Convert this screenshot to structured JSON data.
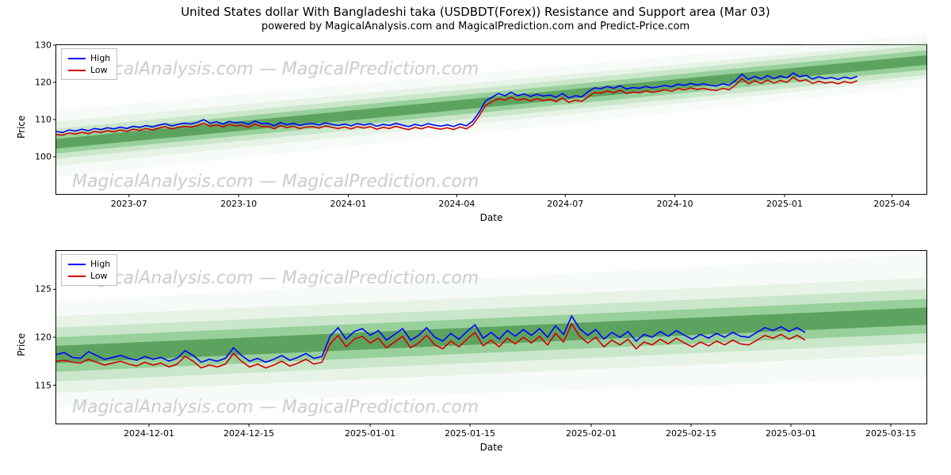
{
  "title": "United States dollar With Bangladeshi taka (USDBDT(Forex)) Resistance and Support area (Mar 03)",
  "subtitle": "powered by MagicalAnalysis.com and MagicalPrediction.com and Predict-Price.com",
  "watermark_text": "MagicalAnalysis.com — MagicalPrediction.com",
  "legend": {
    "high_label": "High",
    "low_label": "Low"
  },
  "colors": {
    "high_line": "#0000ff",
    "low_line": "#d40000",
    "bands": [
      {
        "fill": "#2e7d32",
        "opacity": 0.55
      },
      {
        "fill": "#4caf50",
        "opacity": 0.4
      },
      {
        "fill": "#81c784",
        "opacity": 0.28
      },
      {
        "fill": "#a5d6a7",
        "opacity": 0.2
      },
      {
        "fill": "#c8e6c9",
        "opacity": 0.15
      }
    ],
    "axis": "#000000",
    "background": "#ffffff",
    "watermark": "#cccccc"
  },
  "global": {
    "line_width": 1.6,
    "font_family": "DejaVu Sans, Arial, sans-serif",
    "title_fontsize": 15,
    "subtitle_fontsize": 13,
    "label_fontsize": 12,
    "tick_fontsize": 11
  },
  "panel1": {
    "type": "line-with-bands",
    "xlabel": "Date",
    "ylabel": "Price",
    "ylim": [
      90,
      130
    ],
    "yticks": [
      100,
      110,
      120,
      130
    ],
    "xlim": [
      "2023-05-01",
      "2025-04-30"
    ],
    "xticks": [
      "2023-07",
      "2023-10",
      "2024-01",
      "2024-04",
      "2024-07",
      "2024-10",
      "2025-01",
      "2025-04"
    ],
    "data_x_end": "2025-03-03",
    "band_center": {
      "start_y": 103.5,
      "end_y": 126.0
    },
    "band_halfwidths_at_start": [
      1.3,
      2.6,
      4.0,
      6.0,
      9.0
    ],
    "band_halfwidths_at_end": [
      1.3,
      2.6,
      4.0,
      5.0,
      7.0
    ],
    "series_high": [
      106.8,
      106.5,
      107.2,
      106.9,
      107.4,
      107.0,
      107.6,
      107.3,
      107.8,
      107.5,
      108.0,
      107.6,
      108.2,
      107.9,
      108.4,
      108.0,
      108.5,
      108.9,
      108.3,
      108.7,
      109.0,
      108.8,
      109.2,
      110.0,
      109.0,
      109.4,
      108.8,
      109.5,
      109.1,
      109.3,
      108.7,
      109.6,
      108.9,
      109.0,
      108.3,
      109.2,
      108.6,
      109.0,
      108.4,
      108.8,
      108.9,
      108.5,
      109.1,
      108.7,
      108.4,
      108.8,
      108.3,
      108.9,
      108.5,
      108.9,
      108.2,
      108.7,
      108.4,
      109.0,
      108.5,
      108.1,
      108.7,
      108.3,
      108.9,
      108.5,
      108.2,
      108.6,
      108.1,
      108.8,
      108.3,
      109.6,
      112.0,
      115.0,
      116.0,
      117.0,
      116.4,
      117.3,
      116.4,
      116.9,
      116.2,
      116.8,
      116.3,
      116.6,
      116.0,
      117.0,
      115.8,
      116.4,
      116.1,
      117.5,
      118.5,
      118.3,
      118.9,
      118.4,
      119.1,
      118.2,
      118.6,
      118.4,
      118.9,
      118.5,
      118.8,
      119.2,
      118.8,
      119.5,
      119.2,
      119.7,
      119.3,
      119.6,
      119.2,
      119.0,
      119.6,
      119.2,
      120.5,
      122.2,
      120.8,
      121.6,
      120.9,
      121.8,
      121.0,
      121.7,
      121.2,
      122.5,
      121.5,
      121.9,
      120.9,
      121.5,
      121.0,
      121.3,
      120.8,
      121.4,
      121.0,
      121.6
    ],
    "series_low": [
      106.0,
      105.8,
      106.4,
      106.1,
      106.6,
      106.2,
      106.8,
      106.5,
      107.0,
      106.7,
      107.2,
      106.8,
      107.4,
      107.1,
      107.6,
      107.2,
      107.7,
      108.1,
      107.5,
      107.9,
      108.2,
      108.0,
      108.4,
      109.0,
      108.2,
      108.6,
      108.0,
      108.7,
      108.3,
      108.5,
      107.9,
      108.8,
      108.1,
      108.2,
      107.5,
      108.4,
      107.8,
      108.2,
      107.6,
      108.0,
      108.1,
      107.7,
      108.3,
      107.9,
      107.6,
      108.0,
      107.5,
      108.1,
      107.7,
      108.1,
      107.4,
      107.9,
      107.6,
      108.2,
      107.7,
      107.3,
      107.9,
      107.5,
      108.1,
      107.7,
      107.4,
      107.8,
      107.3,
      108.0,
      107.5,
      108.6,
      111.0,
      113.8,
      114.8,
      115.6,
      115.2,
      116.0,
      115.2,
      115.6,
      115.0,
      115.6,
      115.1,
      115.4,
      114.8,
      115.8,
      114.6,
      115.2,
      114.9,
      116.1,
      117.3,
      117.1,
      117.7,
      117.2,
      117.9,
      117.0,
      117.4,
      117.2,
      117.7,
      117.3,
      117.6,
      118.0,
      117.6,
      118.3,
      118.0,
      118.5,
      118.1,
      118.4,
      118.0,
      117.8,
      118.4,
      118.0,
      119.3,
      121.0,
      119.6,
      120.4,
      119.7,
      120.6,
      119.8,
      120.5,
      120.0,
      121.3,
      120.3,
      120.7,
      119.7,
      120.3,
      119.8,
      120.1,
      119.6,
      120.2,
      119.8,
      120.4
    ]
  },
  "panel2": {
    "type": "line-with-bands",
    "xlabel": "Date",
    "ylabel": "Price",
    "ylim": [
      111,
      129
    ],
    "yticks": [
      115,
      120,
      125
    ],
    "xlim": [
      "2024-11-18",
      "2025-03-20"
    ],
    "xticks": [
      "2024-12-01",
      "2024-12-15",
      "2025-01-01",
      "2025-01-15",
      "2025-02-01",
      "2025-02-15",
      "2025-03-01",
      "2025-03-15"
    ],
    "data_x_end": "2025-03-03",
    "band_center": {
      "start_y": 118.2,
      "end_y": 122.2
    },
    "band_halfwidths_at_start": [
      0.9,
      1.8,
      2.8,
      4.0,
      5.5
    ],
    "band_halfwidths_at_end": [
      0.9,
      1.8,
      2.8,
      4.0,
      6.5
    ],
    "series_high": [
      118.2,
      118.4,
      117.9,
      117.8,
      118.5,
      118.1,
      117.7,
      117.9,
      118.1,
      117.8,
      117.6,
      118.0,
      117.7,
      117.9,
      117.5,
      117.8,
      118.6,
      118.1,
      117.4,
      117.7,
      117.5,
      117.8,
      118.9,
      118.1,
      117.5,
      117.8,
      117.4,
      117.7,
      118.1,
      117.6,
      117.9,
      118.3,
      117.8,
      118.0,
      120.1,
      121.0,
      119.8,
      120.6,
      120.9,
      120.2,
      120.7,
      119.7,
      120.3,
      120.9,
      119.7,
      120.2,
      121.0,
      120.0,
      119.6,
      120.4,
      119.8,
      120.6,
      121.3,
      119.9,
      120.5,
      119.8,
      120.7,
      120.1,
      120.8,
      120.2,
      120.9,
      120.0,
      121.2,
      120.3,
      122.2,
      120.9,
      120.2,
      120.8,
      119.8,
      120.5,
      120.0,
      120.6,
      119.6,
      120.3,
      120.0,
      120.6,
      120.1,
      120.7,
      120.2,
      119.8,
      120.3,
      119.9,
      120.4,
      120.0,
      120.5,
      120.1,
      120.0,
      120.5,
      121.0,
      120.7,
      121.1,
      120.6,
      121.0,
      120.5
    ],
    "series_low": [
      117.5,
      117.6,
      117.4,
      117.3,
      117.7,
      117.4,
      117.1,
      117.3,
      117.5,
      117.2,
      117.0,
      117.4,
      117.1,
      117.3,
      116.9,
      117.2,
      118.0,
      117.5,
      116.8,
      117.1,
      116.9,
      117.2,
      118.3,
      117.5,
      116.9,
      117.2,
      116.8,
      117.1,
      117.5,
      117.0,
      117.3,
      117.7,
      117.2,
      117.4,
      119.3,
      120.2,
      119.0,
      119.8,
      120.1,
      119.4,
      119.9,
      118.9,
      119.5,
      120.1,
      118.9,
      119.4,
      120.2,
      119.2,
      118.8,
      119.6,
      119.0,
      119.8,
      120.5,
      119.1,
      119.7,
      119.0,
      119.9,
      119.3,
      120.0,
      119.4,
      120.1,
      119.2,
      120.4,
      119.5,
      121.4,
      120.1,
      119.4,
      120.0,
      119.0,
      119.7,
      119.2,
      119.8,
      118.8,
      119.5,
      119.2,
      119.8,
      119.3,
      119.9,
      119.4,
      119.0,
      119.5,
      119.1,
      119.6,
      119.2,
      119.7,
      119.3,
      119.2,
      119.7,
      120.2,
      119.9,
      120.3,
      119.8,
      120.2,
      119.7
    ]
  }
}
